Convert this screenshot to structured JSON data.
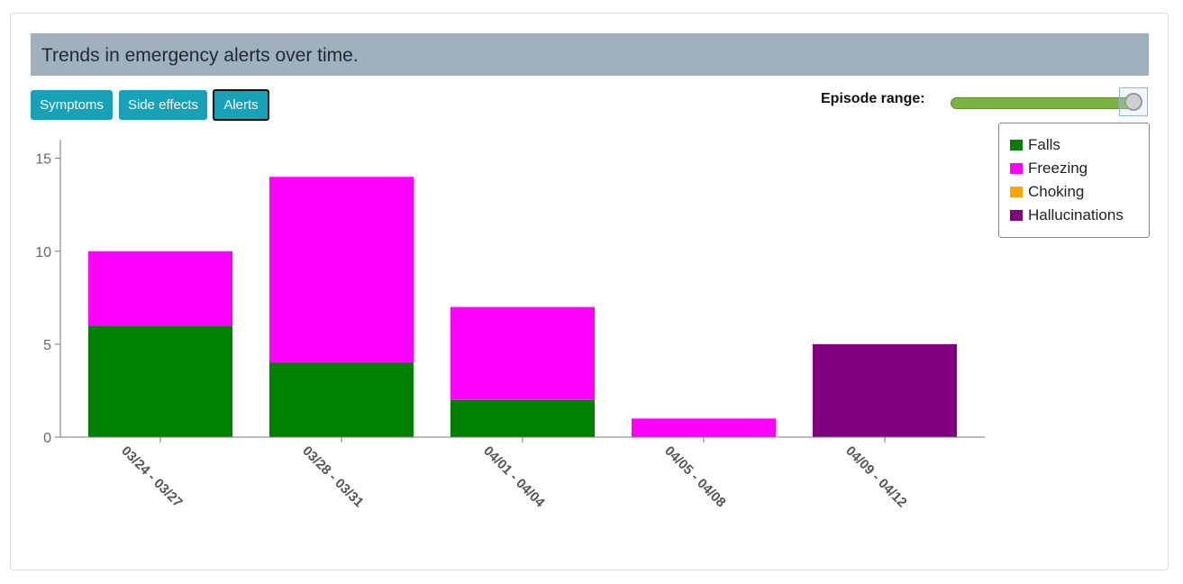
{
  "header": {
    "title": "Trends in emergency alerts over time."
  },
  "buttons": [
    {
      "label": "Symptoms",
      "active": false
    },
    {
      "label": "Side effects",
      "active": false
    },
    {
      "label": "Alerts",
      "active": true
    }
  ],
  "range": {
    "label": "Episode range:",
    "value_fraction": 1.0
  },
  "colors": {
    "Falls": "#008000",
    "Freezing": "#ff00ff",
    "Choking": "#ffa500",
    "Hallucinations": "#800080",
    "slider": "#7cb342",
    "header": "#a0b0bd",
    "button": "#17a2b8"
  },
  "chart_data": {
    "type": "bar",
    "stacked": true,
    "title": "Trends in emergency alerts over time.",
    "categories": [
      "03/24 - 03/27",
      "03/28 - 03/31",
      "04/01 - 04/04",
      "04/05 - 04/08",
      "04/09 - 04/12"
    ],
    "series": [
      {
        "name": "Falls",
        "values": [
          6,
          4,
          2,
          0,
          0
        ]
      },
      {
        "name": "Freezing",
        "values": [
          4,
          10,
          5,
          1,
          0
        ]
      },
      {
        "name": "Choking",
        "values": [
          0,
          0,
          0,
          0,
          0
        ]
      },
      {
        "name": "Hallucinations",
        "values": [
          0,
          0,
          0,
          0,
          5
        ]
      }
    ],
    "ylim": [
      0,
      16
    ],
    "yticks": [
      0,
      5,
      10,
      15
    ],
    "legend": "top-right",
    "grid": false
  }
}
